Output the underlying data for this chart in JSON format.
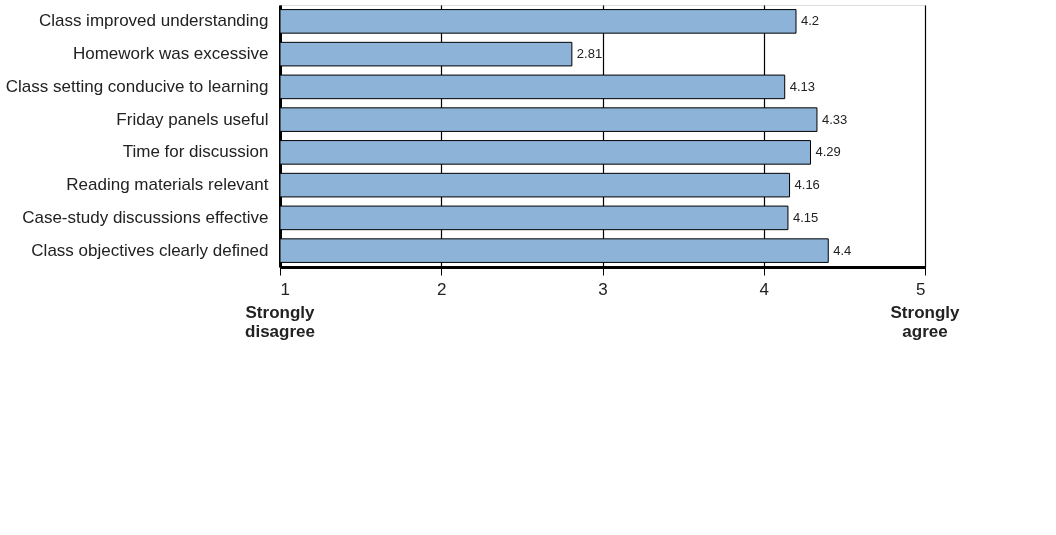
{
  "chart_data": {
    "type": "bar",
    "orientation": "horizontal",
    "categories": [
      "Class improved understanding",
      "Homework was excessive",
      "Class setting conducive to learning",
      "Friday panels useful",
      "Time for discussion",
      "Reading materials relevant",
      "Case-study discussions effective",
      "Class objectives clearly defined"
    ],
    "values": [
      4.2,
      2.81,
      4.13,
      4.33,
      4.29,
      4.16,
      4.15,
      4.4
    ],
    "color": "#8db3d9",
    "xlim": [
      1,
      5
    ],
    "xticks": [
      1,
      2,
      3,
      4,
      5
    ],
    "grid": "x",
    "data_labels": true,
    "annotations": [
      "Strongly disagree",
      "Strongly agree"
    ]
  }
}
